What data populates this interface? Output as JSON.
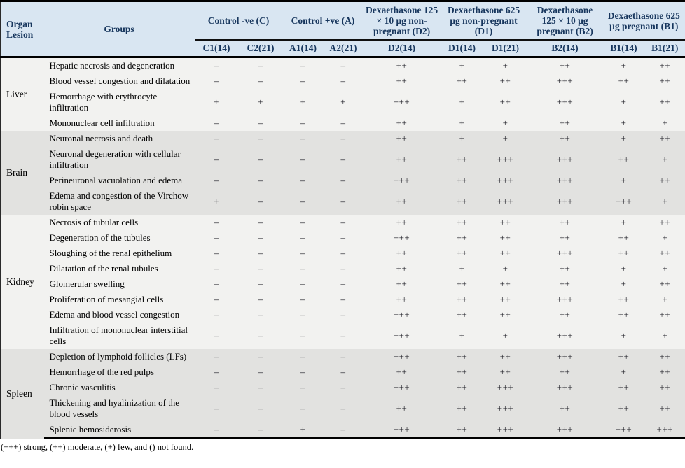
{
  "table": {
    "corner_header": {
      "line1": "Organ",
      "line2": "Lesion"
    },
    "groups_header": "Groups",
    "column_groups": [
      {
        "label": "Control -ve (C)",
        "cols": [
          "C1(14)",
          "C2(21)"
        ]
      },
      {
        "label": "Control +ve (A)",
        "cols": [
          "A1(14)",
          "A2(21)"
        ]
      },
      {
        "label": "Dexaethasone 125 × 10 μg non-pregnant (D2)",
        "cols": [
          "D2(14)"
        ]
      },
      {
        "label": "Dexaethasone 625 μg non-pregnant (D1)",
        "cols": [
          "D1(14)",
          "D1(21)"
        ]
      },
      {
        "label": "Dexaethasone 125 × 10 μg pregnant (B2)",
        "cols": [
          "B2(14)"
        ]
      },
      {
        "label": "Dexaethasone 625 μg pregnant (B1)",
        "cols": [
          "B1(14)",
          "B1(21)"
        ]
      }
    ],
    "sections": [
      {
        "organ": "Liver",
        "shade": "light",
        "rows": [
          {
            "lesion": "Hepatic necrosis and degeneration",
            "values": [
              "–",
              "–",
              "–",
              "–",
              "++",
              "+",
              "+",
              "++",
              "+",
              "++"
            ]
          },
          {
            "lesion": "Blood vessel congestion and dilatation",
            "values": [
              "–",
              "–",
              "–",
              "–",
              "++",
              "++",
              "++",
              "+++",
              "++",
              "++"
            ]
          },
          {
            "lesion": "Hemorrhage with erythrocyte infiltration",
            "values": [
              "+",
              "+",
              "+",
              "+",
              "+++",
              "+",
              "++",
              "+++",
              "+",
              "++"
            ]
          },
          {
            "lesion": "Mononuclear cell infiltration",
            "values": [
              "–",
              "–",
              "–",
              "–",
              "++",
              "+",
              "+",
              "++",
              "+",
              "+"
            ]
          }
        ]
      },
      {
        "organ": "Brain",
        "shade": "dark",
        "rows": [
          {
            "lesion": "Neuronal necrosis and death",
            "values": [
              "–",
              "–",
              "–",
              "–",
              "++",
              "+",
              "+",
              "++",
              "+",
              "++"
            ]
          },
          {
            "lesion": "Neuronal degeneration with cellular infiltration",
            "values": [
              "–",
              "–",
              "–",
              "–",
              "++",
              "++",
              "+++",
              "+++",
              "++",
              "+"
            ]
          },
          {
            "lesion": "Perineuronal vacuolation and edema",
            "values": [
              "–",
              "–",
              "–",
              "–",
              "+++",
              "++",
              "+++",
              "+++",
              "+",
              "++"
            ]
          },
          {
            "lesion": "Edema and congestion of the Virchow robin space",
            "values": [
              "+",
              "–",
              "–",
              "–",
              "++",
              "++",
              "+++",
              "+++",
              "+++",
              "+"
            ]
          }
        ]
      },
      {
        "organ": "Kidney",
        "shade": "light",
        "rows": [
          {
            "lesion": "Necrosis of tubular cells",
            "values": [
              "–",
              "–",
              "–",
              "–",
              "++",
              "++",
              "++",
              "++",
              "+",
              "++"
            ]
          },
          {
            "lesion": "Degeneration of the tubules",
            "values": [
              "–",
              "–",
              "–",
              "–",
              "+++",
              "++",
              "++",
              "++",
              "++",
              "+"
            ]
          },
          {
            "lesion": "Sloughing of the renal epithelium",
            "values": [
              "–",
              "–",
              "–",
              "–",
              "++",
              "++",
              "++",
              "+++",
              "++",
              "++"
            ]
          },
          {
            "lesion": "Dilatation of the renal tubules",
            "values": [
              "–",
              "–",
              "–",
              "–",
              "++",
              "+",
              "+",
              "++",
              "+",
              "+"
            ]
          },
          {
            "lesion": "Glomerular swelling",
            "values": [
              "–",
              "–",
              "–",
              "–",
              "++",
              "++",
              "++",
              "++",
              "+",
              "++"
            ]
          },
          {
            "lesion": "Proliferation of mesangial cells",
            "values": [
              "–",
              "–",
              "–",
              "–",
              "++",
              "++",
              "++",
              "+++",
              "++",
              "+"
            ]
          },
          {
            "lesion": "Edema and blood vessel congestion",
            "values": [
              "–",
              "–",
              "–",
              "–",
              "+++",
              "++",
              "++",
              "++",
              "++",
              "++"
            ]
          },
          {
            "lesion": "Infiltration of mononuclear interstitial cells",
            "values": [
              "–",
              "–",
              "–",
              "–",
              "+++",
              "+",
              "+",
              "+++",
              "+",
              "+"
            ]
          }
        ]
      },
      {
        "organ": "Spleen",
        "shade": "dark",
        "rows": [
          {
            "lesion": "Depletion of lymphoid follicles (LFs)",
            "values": [
              "–",
              "–",
              "–",
              "–",
              "+++",
              "++",
              "++",
              "+++",
              "++",
              "++"
            ]
          },
          {
            "lesion": "Hemorrhage of the red pulps",
            "values": [
              "–",
              "–",
              "–",
              "–",
              "++",
              "++",
              "++",
              "++",
              "+",
              "++"
            ]
          },
          {
            "lesion": "Chronic vasculitis",
            "values": [
              "–",
              "–",
              "–",
              "–",
              "+++",
              "++",
              "+++",
              "+++",
              "++",
              "++"
            ]
          },
          {
            "lesion": "Thickening and hyalinization of the blood vessels",
            "values": [
              "–",
              "–",
              "–",
              "–",
              "++",
              "++",
              "+++",
              "++",
              "++",
              "++"
            ]
          },
          {
            "lesion": "Splenic hemosiderosis",
            "values": [
              "–",
              "–",
              "+",
              "–",
              "+++",
              "++",
              "+++",
              "+++",
              "+++",
              "+++"
            ]
          }
        ]
      }
    ],
    "footnote": "(+++) strong, (++) moderate, (+) few, and () not found."
  }
}
